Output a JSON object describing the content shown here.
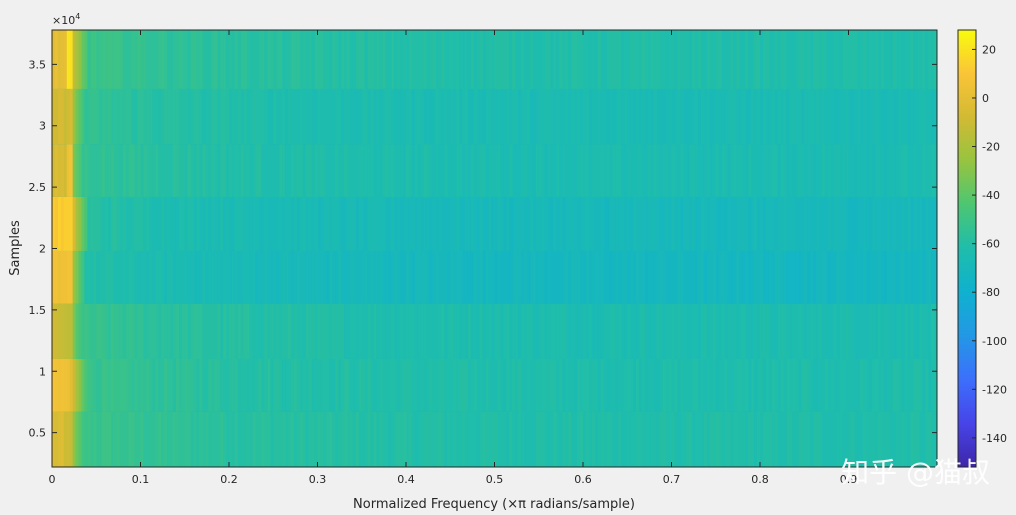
{
  "chart_data": {
    "type": "heatmap",
    "title": "",
    "xlabel": "Normalized Frequency (×π radians/sample)",
    "ylabel": "Samples",
    "xlim": [
      0,
      1
    ],
    "ylim": [
      2200,
      37800
    ],
    "y_exponent_label": "×10",
    "y_exponent_power": "4",
    "x_ticks": [
      {
        "value": 0,
        "label": "0"
      },
      {
        "value": 0.1,
        "label": "0.1"
      },
      {
        "value": 0.2,
        "label": "0.2"
      },
      {
        "value": 0.3,
        "label": "0.3"
      },
      {
        "value": 0.4,
        "label": "0.4"
      },
      {
        "value": 0.5,
        "label": "0.5"
      },
      {
        "value": 0.6,
        "label": "0.6"
      },
      {
        "value": 0.7,
        "label": "0.7"
      },
      {
        "value": 0.8,
        "label": "0.8"
      },
      {
        "value": 0.9,
        "label": "0.9"
      }
    ],
    "y_ticks": [
      {
        "value": 5000,
        "label": "0.5"
      },
      {
        "value": 10000,
        "label": "1"
      },
      {
        "value": 15000,
        "label": "1.5"
      },
      {
        "value": 20000,
        "label": "2"
      },
      {
        "value": 25000,
        "label": "2.5"
      },
      {
        "value": 30000,
        "label": "3"
      },
      {
        "value": 35000,
        "label": "3.5"
      }
    ],
    "colormap": "parula",
    "colorbar": {
      "range": [
        -152,
        28
      ],
      "ticks": [
        20,
        0,
        -20,
        -40,
        -60,
        -80,
        -100,
        -120,
        -140
      ],
      "tick_labels": [
        "20",
        "0",
        "-20",
        "-40",
        "-60",
        "-80",
        "-100",
        "-120",
        "-140"
      ]
    },
    "segments": [
      {
        "y_range": [
          2200,
          6700
        ],
        "low_freq_db": -5,
        "low_freq_width": 0.012,
        "tone_db": -10,
        "high_freq_db": -62
      },
      {
        "y_range": [
          6700,
          11000
        ],
        "low_freq_db": 5,
        "low_freq_width": 0.018,
        "tone_db": -2,
        "high_freq_db": -63
      },
      {
        "y_range": [
          11000,
          15500
        ],
        "low_freq_db": -10,
        "low_freq_width": 0.012,
        "tone_db": -15,
        "high_freq_db": -64
      },
      {
        "y_range": [
          15500,
          19800
        ],
        "low_freq_db": 3,
        "low_freq_width": 0.015,
        "tone_db": 5,
        "high_freq_db": -72
      },
      {
        "y_range": [
          19800,
          24200
        ],
        "low_freq_db": 12,
        "low_freq_width": 0.018,
        "tone_db": 12,
        "high_freq_db": -70
      },
      {
        "y_range": [
          24200,
          28500
        ],
        "low_freq_db": -5,
        "low_freq_width": 0.012,
        "tone_db": 5,
        "high_freq_db": -65
      },
      {
        "y_range": [
          28500,
          33000
        ],
        "low_freq_db": -8,
        "low_freq_width": 0.015,
        "tone_db": -5,
        "high_freq_db": -66
      },
      {
        "y_range": [
          33000,
          37800
        ],
        "low_freq_db": 0,
        "low_freq_width": 0.018,
        "tone_db": 18,
        "high_freq_db": -62
      }
    ],
    "tone_frequency": 0.02
  },
  "watermark": "知乎 @猫叔"
}
